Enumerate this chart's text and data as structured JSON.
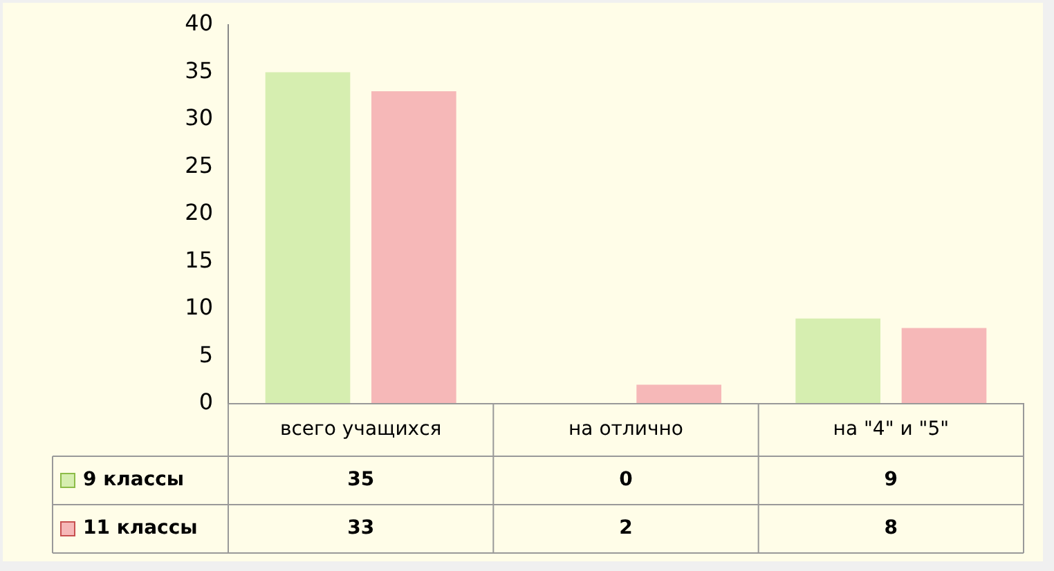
{
  "chart_data": {
    "type": "bar",
    "categories": [
      "всего учащихся",
      "на отлично",
      "на \"4\" и \"5\""
    ],
    "series": [
      {
        "name": "9 классы",
        "color": "#d6eeb0",
        "values": [
          35,
          0,
          9
        ]
      },
      {
        "name": "11 классы",
        "color": "#f6b8b8",
        "values": [
          33,
          2,
          8
        ]
      }
    ],
    "ylim": [
      0,
      40
    ],
    "yticks": [
      0,
      5,
      10,
      15,
      20,
      25,
      30,
      35,
      40
    ],
    "grid": false,
    "legend": "bottom left",
    "data_labels": true
  }
}
